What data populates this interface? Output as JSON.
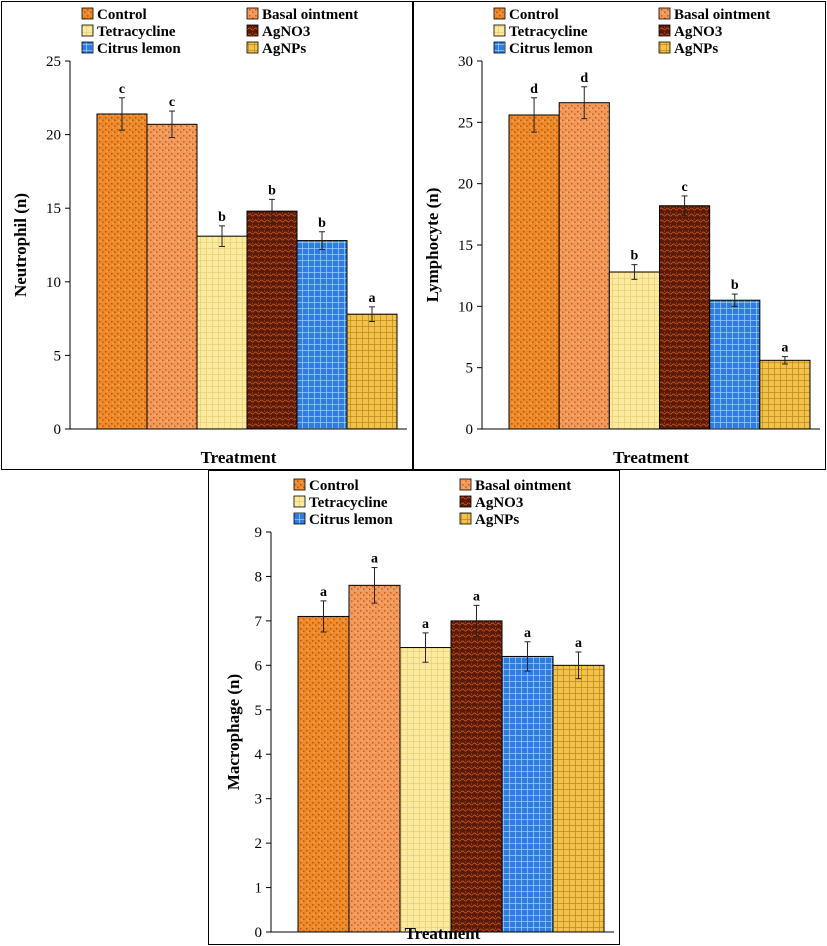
{
  "legend": {
    "series": [
      {
        "key": "control",
        "name": "Control"
      },
      {
        "key": "basal",
        "name": "Basal ointment"
      },
      {
        "key": "tetra",
        "name": "Tetracycline"
      },
      {
        "key": "agno3",
        "name": "AgNO3"
      },
      {
        "key": "citrus",
        "name": "Citrus lemon"
      },
      {
        "key": "agnps",
        "name": "AgNPs"
      }
    ]
  },
  "colors": {
    "control": "#ee8a2a",
    "basal": "#f29a5a",
    "tetra": "#fbeaa0",
    "agno3": "#5a1a08",
    "citrus": "#2f7be0",
    "agnps": "#f2c24a"
  },
  "chart_data": [
    {
      "type": "bar",
      "title": "",
      "xlabel": "Treatment",
      "ylabel": "Neutrophil (n)",
      "ylim": [
        0,
        25
      ],
      "yticks": [
        "0",
        "5",
        "10",
        "15",
        "20",
        "25"
      ],
      "series": [
        {
          "name": "Control",
          "value": 21.4,
          "error": 1.1,
          "label": "c"
        },
        {
          "name": "Basal ointment",
          "value": 20.7,
          "error": 0.9,
          "label": "c"
        },
        {
          "name": "Tetracycline",
          "value": 13.1,
          "error": 0.7,
          "label": "b"
        },
        {
          "name": "AgNO3",
          "value": 14.8,
          "error": 0.8,
          "label": "b"
        },
        {
          "name": "Citrus lemon",
          "value": 12.8,
          "error": 0.6,
          "label": "b"
        },
        {
          "name": "AgNPs",
          "value": 7.8,
          "error": 0.5,
          "label": "a"
        }
      ]
    },
    {
      "type": "bar",
      "title": "",
      "xlabel": "Treatment",
      "ylabel": "Lymphocyte (n)",
      "ylim": [
        0,
        30
      ],
      "yticks": [
        "0",
        "5",
        "10",
        "15",
        "20",
        "25",
        "30"
      ],
      "series": [
        {
          "name": "Control",
          "value": 25.6,
          "error": 1.4,
          "label": "d"
        },
        {
          "name": "Basal ointment",
          "value": 26.6,
          "error": 1.3,
          "label": "d"
        },
        {
          "name": "Tetracycline",
          "value": 12.8,
          "error": 0.6,
          "label": "b"
        },
        {
          "name": "AgNO3",
          "value": 18.2,
          "error": 0.8,
          "label": "c"
        },
        {
          "name": "Citrus lemon",
          "value": 10.5,
          "error": 0.5,
          "label": "b"
        },
        {
          "name": "AgNPs",
          "value": 5.6,
          "error": 0.3,
          "label": "a"
        }
      ]
    },
    {
      "type": "bar",
      "title": "",
      "xlabel": "Treatment",
      "ylabel": "Macrophage (n)",
      "ylim": [
        0,
        9
      ],
      "yticks": [
        "0",
        "1",
        "2",
        "3",
        "4",
        "5",
        "6",
        "7",
        "8",
        "9"
      ],
      "series": [
        {
          "name": "Control",
          "value": 7.1,
          "error": 0.35,
          "label": "a"
        },
        {
          "name": "Basal ointment",
          "value": 7.8,
          "error": 0.4,
          "label": "a"
        },
        {
          "name": "Tetracycline",
          "value": 6.4,
          "error": 0.33,
          "label": "a"
        },
        {
          "name": "AgNO3",
          "value": 7.0,
          "error": 0.35,
          "label": "a"
        },
        {
          "name": "Citrus lemon",
          "value": 6.2,
          "error": 0.33,
          "label": "a"
        },
        {
          "name": "AgNPs",
          "value": 6.0,
          "error": 0.3,
          "label": "a"
        }
      ]
    }
  ]
}
